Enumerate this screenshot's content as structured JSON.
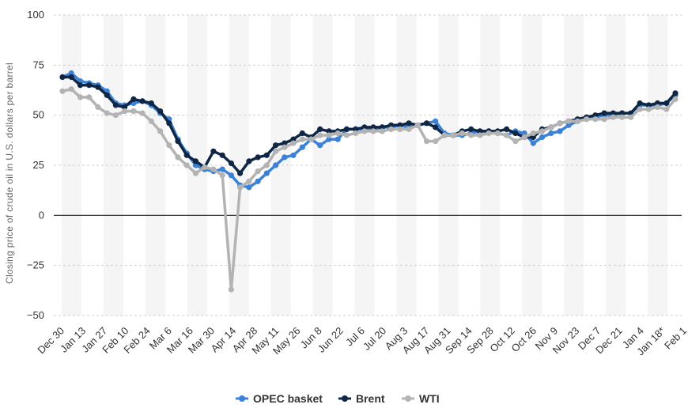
{
  "chart_data": {
    "type": "line",
    "title": "",
    "xlabel": "",
    "ylabel": "Closing price of crude oil in U.S. dollars per barrel",
    "ylim": [
      -50,
      100
    ],
    "yticks": [
      -50,
      -25,
      0,
      25,
      50,
      75,
      100
    ],
    "ytick_labels": [
      "−50",
      "−25",
      "0",
      "25",
      "50",
      "75",
      "100"
    ],
    "xtick_labels": [
      "Dec 30",
      "Jan 13",
      "Jan 27",
      "Feb 10",
      "Feb 24",
      "Mar 6",
      "Mar 16",
      "Mar 30",
      "Apr 14",
      "Apr 28",
      "May 11",
      "May 26",
      "Jun 8",
      "Jun 22",
      "Jul 6",
      "Jul 20",
      "Aug 3",
      "Aug 17",
      "Aug 31",
      "Sep 14",
      "Sep 28",
      "Oct 12",
      "Oct 26",
      "Nov 9",
      "Nov 23",
      "Dec 7",
      "Dec 21",
      "Jan 4",
      "Jan 18*",
      "Feb 1"
    ],
    "legend_position": "bottom-center",
    "series": [
      {
        "name": "OPEC basket",
        "color": "#3b82d6",
        "values": [
          69,
          71,
          67,
          66,
          65,
          62,
          56,
          55,
          56,
          57,
          55,
          51,
          48,
          38,
          31,
          25,
          23,
          22,
          23,
          20,
          15,
          14,
          17,
          21,
          25,
          29,
          30,
          34,
          38,
          35,
          38,
          38,
          43,
          43,
          43,
          43,
          44,
          44,
          45,
          44,
          45,
          46,
          47,
          41,
          40,
          40,
          41,
          42,
          42,
          41,
          40,
          42,
          41,
          36,
          39,
          41,
          42,
          45,
          47,
          48,
          49,
          50,
          50,
          51,
          51,
          55,
          55,
          55,
          56,
          60
        ]
      },
      {
        "name": "Brent",
        "color": "#0f2744",
        "values": [
          69,
          69,
          65,
          65,
          64,
          60,
          55,
          54,
          58,
          57,
          56,
          52,
          46,
          37,
          30,
          27,
          24,
          32,
          30,
          26,
          21,
          27,
          29,
          30,
          35,
          36,
          38,
          41,
          39,
          43,
          42,
          42,
          43,
          43,
          44,
          44,
          44,
          45,
          45,
          46,
          45,
          46,
          44,
          40,
          40,
          42,
          43,
          42,
          42,
          42,
          43,
          41,
          39,
          39,
          43,
          44,
          46,
          47,
          48,
          49,
          50,
          51,
          51,
          51,
          51,
          56,
          55,
          56,
          56,
          61
        ]
      },
      {
        "name": "WTI",
        "color": "#b3b3b3",
        "values": [
          62,
          63,
          59,
          59,
          54,
          51,
          50,
          52,
          52,
          51,
          47,
          42,
          35,
          29,
          25,
          21,
          24,
          23,
          20,
          -37,
          14,
          17,
          22,
          25,
          32,
          34,
          36,
          38,
          38,
          40,
          40,
          41,
          40,
          41,
          42,
          42,
          42,
          43,
          43,
          43,
          45,
          37,
          37,
          40,
          40,
          41,
          40,
          40,
          41,
          41,
          40,
          37,
          39,
          41,
          42,
          44,
          46,
          47,
          47,
          48,
          48,
          48,
          49,
          49,
          49,
          53,
          53,
          54,
          53,
          58
        ]
      }
    ]
  }
}
